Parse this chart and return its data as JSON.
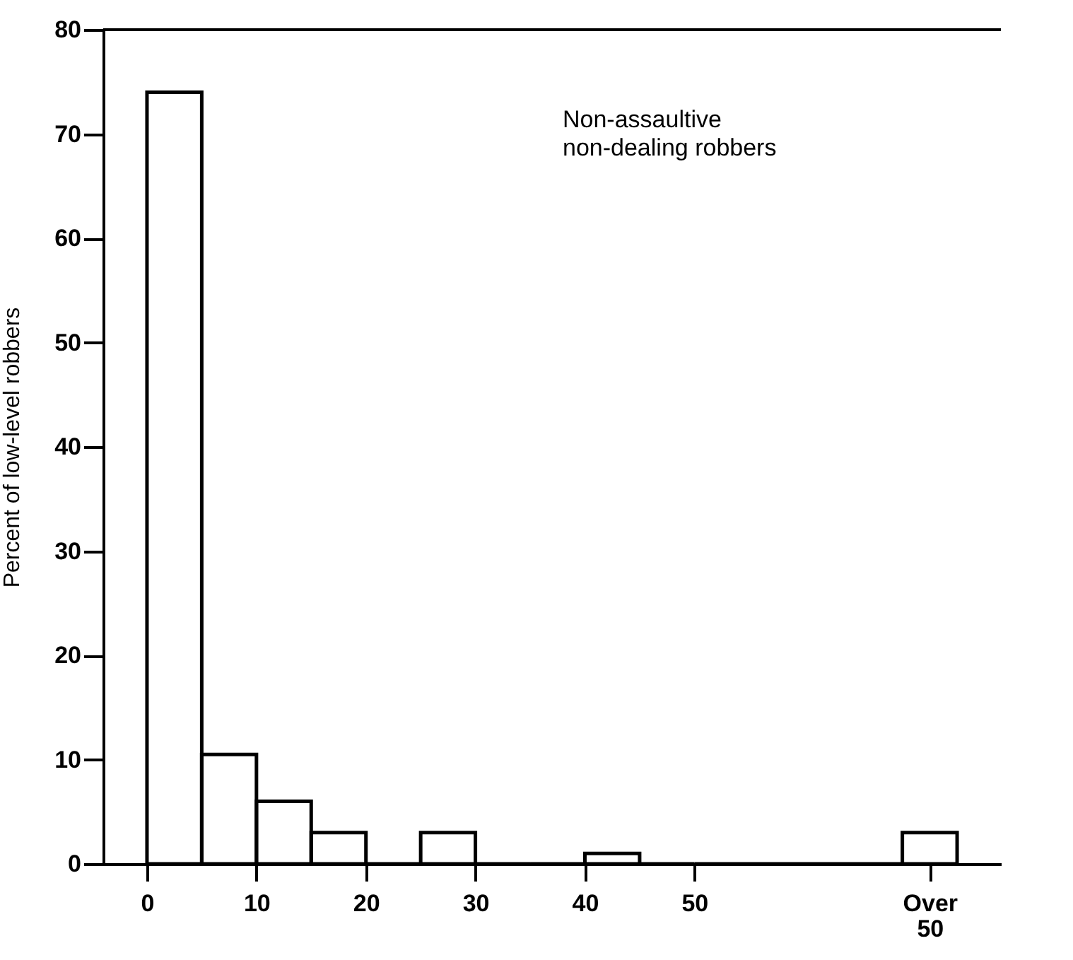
{
  "chart_data": {
    "type": "histogram",
    "ylabel": "Percent of low-level robbers",
    "bins": [
      0,
      5,
      10,
      15,
      20,
      25,
      30,
      35,
      40,
      45,
      50,
      69,
      74
    ],
    "values": [
      74,
      10.5,
      6,
      3,
      0,
      3,
      0,
      0,
      1,
      0,
      0,
      3
    ],
    "color": "#000000",
    "xlim": [
      -4,
      78
    ],
    "ylim": [
      0,
      80
    ],
    "xticks": [
      0,
      10,
      20,
      30,
      40,
      50,
      {
        "value": 71.5,
        "label": "Over 50"
      }
    ],
    "yticks": [
      0,
      10,
      20,
      30,
      40,
      50,
      60,
      70,
      80
    ],
    "annotations": [
      "Non-assaultive\nnon-dealing robbers"
    ],
    "grid": false
  }
}
